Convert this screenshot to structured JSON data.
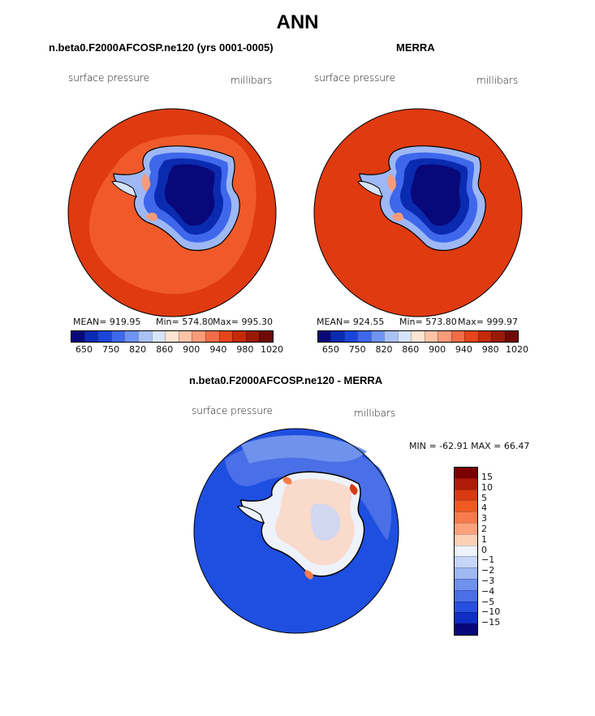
{
  "title": "ANN",
  "panels": [
    {
      "title": "n.beta0.F2000AFCOSP.ne120 (yrs 0001-0005)",
      "field_label": "surface pressure",
      "units": "millibars",
      "mean_text": "MEAN= 919.95",
      "min_text": "Min= 574.80",
      "max_text": "Max= 995.30",
      "colorbar_labels": [
        "650",
        "750",
        "820",
        "860",
        "900",
        "940",
        "980",
        "1020"
      ],
      "ocean_color": "#e03a10",
      "ring_color": "#f05a2a"
    },
    {
      "title": "MERRA",
      "field_label": "surface pressure",
      "units": "millibars",
      "mean_text": "MEAN= 924.55",
      "min_text": "Min= 573.80",
      "max_text": "Max= 999.97",
      "colorbar_labels": [
        "650",
        "750",
        "820",
        "860",
        "900",
        "940",
        "980",
        "1020"
      ],
      "ocean_color": "#e03a10"
    }
  ],
  "diff_panel": {
    "title": "n.beta0.F2000AFCOSP.ne120 - MERRA",
    "field_label": "surface pressure",
    "units": "millibars",
    "minmax_text": "MIN = -62.91 MAX =  66.47",
    "colorbar_labels": [
      "15",
      "10",
      "5",
      "4",
      "3",
      "2",
      "1",
      "0",
      "−1",
      "−2",
      "−3",
      "−4",
      "−5",
      "−10",
      "−15"
    ],
    "ocean_color": "#1e4fe0"
  },
  "colors": {
    "abs_scale": [
      "#08087a",
      "#0a2bb0",
      "#1a45d8",
      "#3f67ec",
      "#6e93f2",
      "#a8c2f7",
      "#d6e4fb",
      "#fde3d2",
      "#fcc3a7",
      "#f99b78",
      "#f26d46",
      "#e6441a",
      "#c42a0a",
      "#9a1a06",
      "#6e0a04"
    ],
    "diff_scale": [
      "#7a0000",
      "#b01a08",
      "#d83a12",
      "#f05a22",
      "#f77a4a",
      "#fba27c",
      "#fdd0b6",
      "#eef2fb",
      "#c6d6f7",
      "#9eb8f2",
      "#6f92ec",
      "#4a6fe6",
      "#2a4ee0",
      "#0f2fc4",
      "#08087a"
    ]
  }
}
